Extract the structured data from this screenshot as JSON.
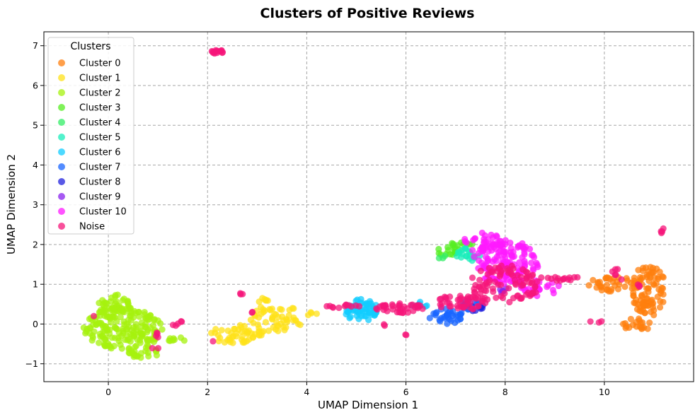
{
  "chart_data": {
    "type": "scatter",
    "title": "Clusters of Positive Reviews",
    "xlabel": "UMAP Dimension 1",
    "ylabel": "UMAP Dimension 2",
    "xlim": [
      -1.3,
      11.8
    ],
    "ylim": [
      -1.45,
      7.35
    ],
    "x_ticks": [
      0,
      2,
      4,
      6,
      8,
      10
    ],
    "y_ticks": [
      -1,
      0,
      1,
      2,
      3,
      4,
      5,
      6,
      7
    ],
    "grid": true,
    "legend": {
      "title": "Clusters",
      "position": "top-left"
    },
    "series": [
      {
        "name": "Cluster 0",
        "color": "#ff7f0e",
        "regions": [
          {
            "cx": 10.9,
            "cy": 0.85,
            "rx": 0.35,
            "ry": 0.65,
            "n": 90
          },
          {
            "cx": 10.2,
            "cy": 1.0,
            "rx": 0.55,
            "ry": 0.18,
            "n": 35
          },
          {
            "cx": 10.7,
            "cy": 0.0,
            "rx": 0.4,
            "ry": 0.15,
            "n": 20
          }
        ]
      },
      {
        "name": "Cluster 1",
        "color": "#ffe21a",
        "regions": [
          {
            "cx": 2.6,
            "cy": -0.25,
            "rx": 0.55,
            "ry": 0.25,
            "n": 50
          },
          {
            "cx": 3.4,
            "cy": 0.15,
            "rx": 0.55,
            "ry": 0.35,
            "n": 50
          },
          {
            "cx": 3.2,
            "cy": 0.6,
            "rx": 0.2,
            "ry": 0.1,
            "n": 6
          },
          {
            "cx": 4.15,
            "cy": 0.25,
            "rx": 0.15,
            "ry": 0.05,
            "n": 4
          }
        ]
      },
      {
        "name": "Cluster 2",
        "color": "#a6f20d",
        "regions": [
          {
            "cx": 0.3,
            "cy": -0.1,
            "rx": 0.8,
            "ry": 0.55,
            "n": 170
          },
          {
            "cx": 0.1,
            "cy": 0.45,
            "rx": 0.35,
            "ry": 0.3,
            "n": 45
          },
          {
            "cx": 0.7,
            "cy": -0.7,
            "rx": 0.35,
            "ry": 0.18,
            "n": 25
          },
          {
            "cx": 1.4,
            "cy": -0.4,
            "rx": 0.25,
            "ry": 0.06,
            "n": 8
          }
        ]
      },
      {
        "name": "Cluster 3",
        "color": "#55ee22",
        "regions": [
          {
            "cx": 6.85,
            "cy": 1.85,
            "rx": 0.25,
            "ry": 0.15,
            "n": 16
          },
          {
            "cx": 7.1,
            "cy": 2.0,
            "rx": 0.25,
            "ry": 0.05,
            "n": 8
          }
        ]
      },
      {
        "name": "Cluster 4",
        "color": "#33ee66",
        "regions": [
          {
            "cx": 6.75,
            "cy": 1.7,
            "rx": 0.1,
            "ry": 0.08,
            "n": 3
          }
        ]
      },
      {
        "name": "Cluster 5",
        "color": "#1aeebb",
        "regions": [
          {
            "cx": 7.25,
            "cy": 1.75,
            "rx": 0.25,
            "ry": 0.18,
            "n": 20
          }
        ]
      },
      {
        "name": "Cluster 6",
        "color": "#11ccff",
        "regions": [
          {
            "cx": 5.1,
            "cy": 0.35,
            "rx": 0.35,
            "ry": 0.28,
            "n": 60
          },
          {
            "cx": 6.2,
            "cy": 0.5,
            "rx": 0.3,
            "ry": 0.08,
            "n": 8
          }
        ]
      },
      {
        "name": "Cluster 7",
        "color": "#1a66ff",
        "regions": [
          {
            "cx": 6.8,
            "cy": 0.2,
            "rx": 0.35,
            "ry": 0.2,
            "n": 35
          },
          {
            "cx": 7.3,
            "cy": 0.45,
            "rx": 0.25,
            "ry": 0.15,
            "n": 15
          }
        ]
      },
      {
        "name": "Cluster 8",
        "color": "#2222dd",
        "regions": [
          {
            "cx": 7.45,
            "cy": 0.4,
            "rx": 0.15,
            "ry": 0.1,
            "n": 8
          }
        ]
      },
      {
        "name": "Cluster 9",
        "color": "#8822ee",
        "regions": [
          {
            "cx": 7.95,
            "cy": 0.85,
            "rx": 0.12,
            "ry": 0.1,
            "n": 5
          }
        ]
      },
      {
        "name": "Cluster 10",
        "color": "#ff1aff",
        "regions": [
          {
            "cx": 8.0,
            "cy": 1.55,
            "rx": 0.7,
            "ry": 0.55,
            "n": 140
          },
          {
            "cx": 7.6,
            "cy": 2.05,
            "rx": 0.45,
            "ry": 0.25,
            "n": 35
          },
          {
            "cx": 8.7,
            "cy": 0.9,
            "rx": 0.4,
            "ry": 0.2,
            "n": 25
          }
        ]
      },
      {
        "name": "Noise",
        "color": "#f5157a",
        "regions": [
          {
            "cx": 8.0,
            "cy": 1.0,
            "rx": 0.7,
            "ry": 0.5,
            "n": 90
          },
          {
            "cx": 7.1,
            "cy": 0.55,
            "rx": 0.55,
            "ry": 0.2,
            "n": 45
          },
          {
            "cx": 5.9,
            "cy": 0.4,
            "rx": 0.5,
            "ry": 0.12,
            "n": 40
          },
          {
            "cx": 4.75,
            "cy": 0.45,
            "rx": 0.35,
            "ry": 0.05,
            "n": 12
          },
          {
            "cx": 9.1,
            "cy": 1.15,
            "rx": 0.4,
            "ry": 0.06,
            "n": 15
          },
          {
            "cx": 2.2,
            "cy": 6.85,
            "rx": 0.12,
            "ry": 0.05,
            "n": 14
          },
          {
            "cx": 11.15,
            "cy": 2.35,
            "rx": 0.05,
            "ry": 0.1,
            "n": 4
          },
          {
            "cx": 1.3,
            "cy": 0.05,
            "rx": 0.2,
            "ry": 0.1,
            "n": 5
          },
          {
            "cx": 0.95,
            "cy": -0.55,
            "rx": 0.1,
            "ry": 0.35,
            "n": 6
          },
          {
            "cx": 2.7,
            "cy": 0.78,
            "rx": 0.05,
            "ry": 0.05,
            "n": 3
          },
          {
            "cx": 10.25,
            "cy": 1.2,
            "rx": 0.2,
            "ry": 0.25,
            "n": 6
          },
          {
            "cx": 9.85,
            "cy": 0.05,
            "rx": 0.15,
            "ry": 0.05,
            "n": 3
          },
          {
            "cx": 6.0,
            "cy": -0.25,
            "rx": 0.03,
            "ry": 0.03,
            "n": 2
          },
          {
            "cx": 5.55,
            "cy": 0.0,
            "rx": 0.1,
            "ry": 0.05,
            "n": 2
          },
          {
            "cx": -0.3,
            "cy": 0.2,
            "rx": 0.02,
            "ry": 0.02,
            "n": 1
          },
          {
            "cx": 2.1,
            "cy": -0.45,
            "rx": 0.02,
            "ry": 0.02,
            "n": 1
          },
          {
            "cx": 2.9,
            "cy": 0.3,
            "rx": 0.05,
            "ry": 0.03,
            "n": 2
          },
          {
            "cx": 10.7,
            "cy": 0.95,
            "rx": 0.15,
            "ry": 0.05,
            "n": 3
          }
        ]
      }
    ]
  }
}
